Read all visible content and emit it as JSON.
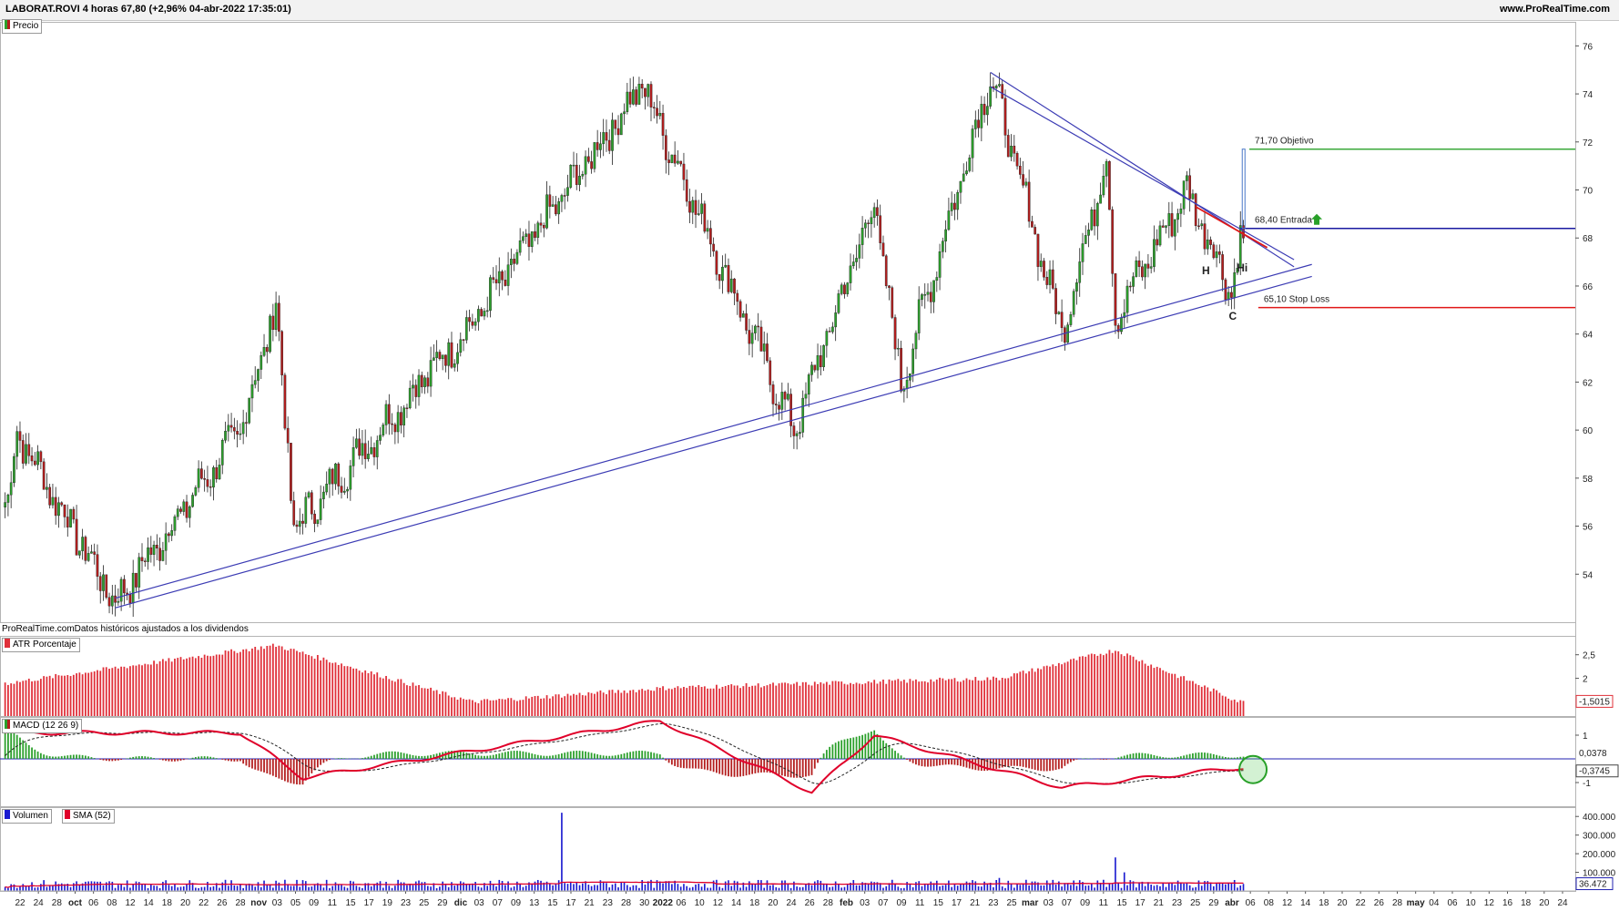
{
  "header": {
    "title": "LABORAT.ROVI 4 horas 67,80 (+2,96% 04-abr-2022 17:35:01)",
    "site": "www.ProRealTime.com"
  },
  "price_panel": {
    "legend": "Precio",
    "source_note": "ProRealTime.comDatos históricos ajustados a los dividendos",
    "annotations": {
      "objetivo_value": "71,70",
      "objetivo_label": "Objetivo",
      "entrada_value": "68,40",
      "entrada_label": "Entrada",
      "stop_value": "65,10",
      "stop_label": "Stop Loss",
      "H": "H",
      "Hi": "Hi",
      "C": "C"
    },
    "levels": {
      "objetivo": 71.7,
      "entrada": 68.4,
      "stop": 65.1
    }
  },
  "atr_panel": {
    "legend": "ATR Porcentaje",
    "last_value": "1,5015"
  },
  "macd_panel": {
    "legend": "MACD (12 26 9)",
    "value_1": "0,0378",
    "value_2": "-0,3745"
  },
  "volume_panel": {
    "legend_volume": "Volumen",
    "legend_sma": "SMA (52)",
    "last_value": "36.472"
  },
  "colors": {
    "up": "#2ca02c",
    "down": "#b41e1e",
    "trendline": "#3c3cb4",
    "objetivo": "#3aa83a",
    "entrada": "#1a1aa0",
    "stop": "#e01818",
    "atr_bar": "#e0303a",
    "macd_line": "#e0002a",
    "volume_bar": "#1a1ad0",
    "volume_sma": "#e0002a"
  },
  "chart_data": [
    {
      "type": "candlestick",
      "title": "LABORAT.ROVI 4 horas",
      "ylim": [
        52,
        77
      ],
      "y_ticks": [
        "54",
        "56",
        "58",
        "60",
        "62",
        "64",
        "66",
        "68",
        "70",
        "72",
        "74",
        "76"
      ],
      "x_tick_labels": [
        "22",
        "24",
        "28",
        "oct",
        "06",
        "08",
        "12",
        "14",
        "18",
        "20",
        "22",
        "26",
        "28",
        "nov",
        "03",
        "05",
        "09",
        "11",
        "15",
        "17",
        "19",
        "23",
        "25",
        "29",
        "dic",
        "03",
        "07",
        "09",
        "13",
        "15",
        "17",
        "21",
        "23",
        "28",
        "30",
        "2022",
        "06",
        "10",
        "12",
        "14",
        "18",
        "20",
        "24",
        "26",
        "28",
        "feb",
        "03",
        "07",
        "09",
        "11",
        "15",
        "17",
        "21",
        "23",
        "25",
        "mar",
        "03",
        "07",
        "09",
        "11",
        "15",
        "17",
        "21",
        "23",
        "25",
        "29",
        "abr",
        "06",
        "08",
        "12",
        "14",
        "18",
        "20",
        "22",
        "26",
        "28",
        "may",
        "04",
        "06",
        "10",
        "12",
        "16",
        "18",
        "20",
        "24"
      ],
      "key_points": [
        {
          "date": "2021-09-22",
          "close": 57.0
        },
        {
          "date": "2021-09-23",
          "high": 59.9
        },
        {
          "date": "2021-10-08",
          "low": 52.8
        },
        {
          "date": "2021-10-28",
          "high": 60.0
        },
        {
          "date": "2021-11-03",
          "high": 65.2
        },
        {
          "date": "2021-11-05",
          "low": 55.9
        },
        {
          "date": "2021-12-03",
          "close": 64.5
        },
        {
          "date": "2021-12-30",
          "high": 74.4
        },
        {
          "date": "2022-01-24",
          "low": 60.0
        },
        {
          "date": "2022-02-04",
          "high": 69.5
        },
        {
          "date": "2022-02-09",
          "low": 61.9
        },
        {
          "date": "2022-02-23",
          "high": 74.8
        },
        {
          "date": "2022-03-07",
          "low": 64.1
        },
        {
          "date": "2022-03-14",
          "high": 71.3
        },
        {
          "date": "2022-03-15",
          "low": 64.7
        },
        {
          "date": "2022-03-25",
          "high": 70.0
        },
        {
          "date": "2022-04-01",
          "low": 65.8
        },
        {
          "date": "2022-04-04",
          "close": 67.8
        }
      ],
      "lines": [
        {
          "name": "Objetivo",
          "y": 71.7
        },
        {
          "name": "Entrada",
          "y": 68.4
        },
        {
          "name": "Stop Loss",
          "y": 65.1
        }
      ]
    },
    {
      "type": "bar",
      "title": "ATR Porcentaje",
      "y_ticks": [
        "2",
        "2,5"
      ],
      "last": 1.5015,
      "key_points": [
        {
          "date": "2021-09-22",
          "value": 1.9
        },
        {
          "date": "2021-11-03",
          "value": 2.7
        },
        {
          "date": "2021-12-03",
          "value": 1.5
        },
        {
          "date": "2022-01-04",
          "value": 1.8
        },
        {
          "date": "2022-02-24",
          "value": 2.0
        },
        {
          "date": "2022-03-15",
          "value": 2.6
        },
        {
          "date": "2022-04-04",
          "value": 1.5015
        }
      ]
    },
    {
      "type": "line",
      "title": "MACD (12 26 9)",
      "y_ticks": [
        "1",
        "-1"
      ],
      "last": [
        0.0378,
        -0.3745
      ],
      "key_points": [
        {
          "date": "2021-10-28",
          "value": 1.1
        },
        {
          "date": "2021-11-08",
          "value": -0.8
        },
        {
          "date": "2022-01-03",
          "value": 1.6
        },
        {
          "date": "2022-01-26",
          "value": -1.4
        },
        {
          "date": "2022-02-04",
          "value": 1.0
        },
        {
          "date": "2022-03-07",
          "value": -1.2
        },
        {
          "date": "2022-04-04",
          "value": -0.37
        }
      ]
    },
    {
      "type": "bar",
      "title": "Volumen",
      "y_ticks": [
        "100.000",
        "200.000",
        "300.000",
        "400.000"
      ],
      "series": [
        {
          "name": "Volumen"
        },
        {
          "name": "SMA (52)"
        }
      ],
      "last": 36472,
      "key_points": [
        {
          "date": "2021-12-17",
          "value": 420000
        },
        {
          "date": "2022-03-15",
          "value": 180000
        },
        {
          "date": "2022-04-04",
          "value": 36472
        }
      ]
    }
  ]
}
